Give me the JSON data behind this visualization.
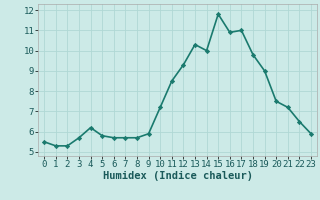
{
  "x": [
    0,
    1,
    2,
    3,
    4,
    5,
    6,
    7,
    8,
    9,
    10,
    11,
    12,
    13,
    14,
    15,
    16,
    17,
    18,
    19,
    20,
    21,
    22,
    23
  ],
  "y": [
    5.5,
    5.3,
    5.3,
    5.7,
    6.2,
    5.8,
    5.7,
    5.7,
    5.7,
    5.9,
    7.2,
    8.5,
    9.3,
    10.3,
    10.0,
    11.8,
    10.9,
    11.0,
    9.8,
    9.0,
    7.5,
    7.2,
    6.5,
    5.9
  ],
  "line_color": "#1a7a6e",
  "marker": "D",
  "marker_size": 2.2,
  "bg_color": "#cceae7",
  "grid_color": "#b0d8d4",
  "xlabel": "Humidex (Indice chaleur)",
  "ylim": [
    4.8,
    12.3
  ],
  "xlim": [
    -0.5,
    23.5
  ],
  "yticks": [
    5,
    6,
    7,
    8,
    9,
    10,
    11,
    12
  ],
  "xticks": [
    0,
    1,
    2,
    3,
    4,
    5,
    6,
    7,
    8,
    9,
    10,
    11,
    12,
    13,
    14,
    15,
    16,
    17,
    18,
    19,
    20,
    21,
    22,
    23
  ],
  "xlabel_fontsize": 7.5,
  "tick_fontsize": 6.5,
  "line_width": 1.2
}
